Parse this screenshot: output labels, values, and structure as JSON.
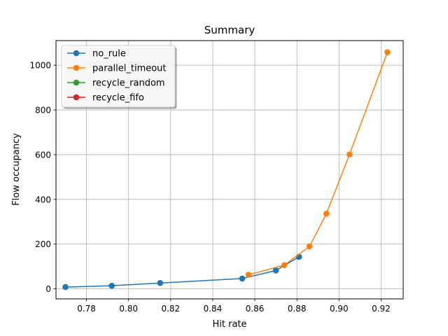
{
  "chart_data": {
    "type": "line",
    "title": "Summary",
    "xlabel": "Hit rate",
    "ylabel": "Flow occupancy",
    "xlim": [
      0.7655,
      0.9305
    ],
    "ylim": [
      -45,
      1110
    ],
    "xticks": [
      0.78,
      0.8,
      0.82,
      0.84,
      0.86,
      0.88,
      0.9,
      0.92
    ],
    "xtick_labels": [
      "0.78",
      "0.80",
      "0.82",
      "0.84",
      "0.86",
      "0.88",
      "0.90",
      "0.92"
    ],
    "yticks": [
      0,
      200,
      400,
      600,
      800,
      1000
    ],
    "ytick_labels": [
      "0",
      "200",
      "400",
      "600",
      "800",
      "1000"
    ],
    "grid": true,
    "legend_position": "upper-left",
    "series": [
      {
        "name": "no_rule",
        "color": "#1f77b4",
        "marker": "circle",
        "x": [
          0.77,
          0.792,
          0.815,
          0.854,
          0.87,
          0.881
        ],
        "y": [
          8,
          14,
          26,
          46,
          82,
          143
        ]
      },
      {
        "name": "parallel_timeout",
        "color": "#ff7f0e",
        "marker": "circle",
        "x": [
          0.857,
          0.874,
          0.886,
          0.894,
          0.905,
          0.923
        ],
        "y": [
          63,
          106,
          190,
          336,
          601,
          1058
        ]
      },
      {
        "name": "recycle_random",
        "color": "#2ca02c",
        "marker": "circle",
        "x": [],
        "y": []
      },
      {
        "name": "recycle_fifo",
        "color": "#d62728",
        "marker": "circle",
        "x": [],
        "y": []
      }
    ]
  }
}
